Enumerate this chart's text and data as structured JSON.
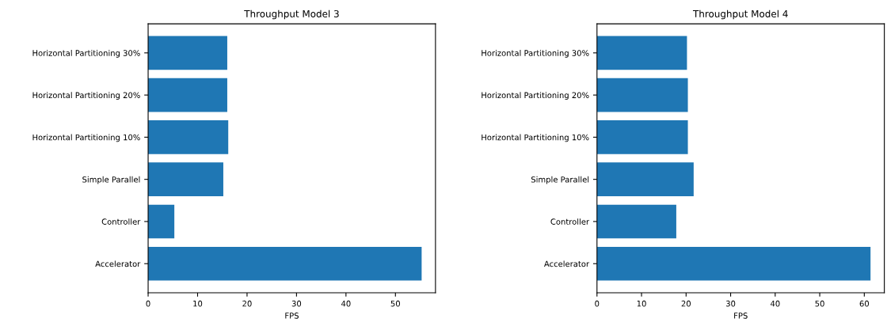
{
  "chart_data": [
    {
      "type": "bar",
      "orientation": "horizontal",
      "title": "Throughput Model 3",
      "xlabel": "FPS",
      "categories": [
        "Horizontal Partitioning 30%",
        "Horizontal Partitioning 20%",
        "Horizontal Partitioning 10%",
        "Simple Parallel",
        "Controller",
        "Accelerator"
      ],
      "values": [
        16.0,
        16.0,
        16.2,
        15.2,
        5.3,
        55.3
      ],
      "color": "#1f77b4",
      "xlim": [
        0,
        58.1
      ],
      "xticks": [
        0,
        10,
        20,
        30,
        40,
        50
      ],
      "grid": false,
      "legend": false
    },
    {
      "type": "bar",
      "orientation": "horizontal",
      "title": "Throughput Model 4",
      "xlabel": "FPS",
      "categories": [
        "Horizontal Partitioning 30%",
        "Horizontal Partitioning 20%",
        "Horizontal Partitioning 10%",
        "Simple Parallel",
        "Controller",
        "Accelerator"
      ],
      "values": [
        20.2,
        20.4,
        20.4,
        21.7,
        17.8,
        61.4
      ],
      "color": "#1f77b4",
      "xlim": [
        0,
        64.5
      ],
      "xticks": [
        0,
        10,
        20,
        30,
        40,
        50,
        60
      ],
      "grid": false,
      "legend": false
    }
  ]
}
